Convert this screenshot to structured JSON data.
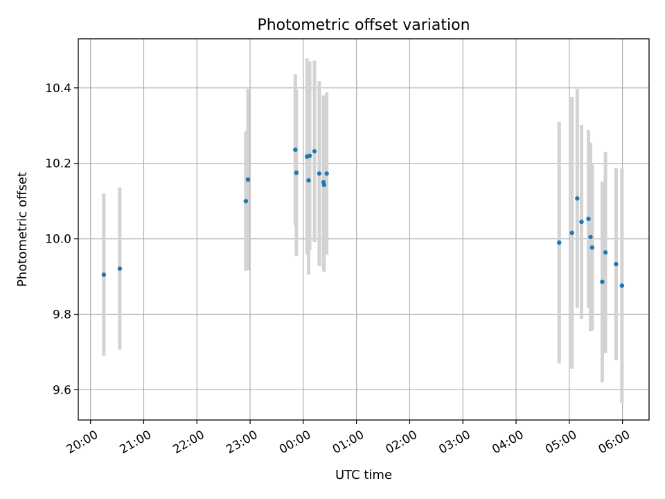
{
  "chart_data": {
    "type": "scatter",
    "title": "Photometric offset variation",
    "xlabel": "UTC time",
    "ylabel": "Photometric offset",
    "x_unit": "hours since 20:00 UTC",
    "xlim": [
      -0.23,
      10.5
    ],
    "ylim": [
      9.52,
      10.53
    ],
    "x_ticks": [
      {
        "label": "20:00",
        "value": 0
      },
      {
        "label": "21:00",
        "value": 1
      },
      {
        "label": "22:00",
        "value": 2
      },
      {
        "label": "23:00",
        "value": 3
      },
      {
        "label": "00:00",
        "value": 4
      },
      {
        "label": "01:00",
        "value": 5
      },
      {
        "label": "02:00",
        "value": 6
      },
      {
        "label": "03:00",
        "value": 7
      },
      {
        "label": "04:00",
        "value": 8
      },
      {
        "label": "05:00",
        "value": 9
      },
      {
        "label": "06:00",
        "value": 10
      }
    ],
    "y_ticks": [
      {
        "label": "9.6",
        "value": 9.6
      },
      {
        "label": "9.8",
        "value": 9.8
      },
      {
        "label": "10.0",
        "value": 10.0
      },
      {
        "label": "10.2",
        "value": 10.2
      },
      {
        "label": "10.4",
        "value": 10.4
      }
    ],
    "grid": true,
    "colors": {
      "point": "#1f77b4",
      "errorbar": "#d3d3d3",
      "grid": "#b0b0b0"
    },
    "points": [
      {
        "x": 0.25,
        "y": 9.905,
        "yerr": 0.215
      },
      {
        "x": 0.55,
        "y": 9.921,
        "yerr": 0.215
      },
      {
        "x": 2.92,
        "y": 10.1,
        "yerr": 0.185
      },
      {
        "x": 2.96,
        "y": 10.157,
        "yerr": 0.24
      },
      {
        "x": 3.85,
        "y": 10.236,
        "yerr": 0.2
      },
      {
        "x": 3.87,
        "y": 10.175,
        "yerr": 0.22
      },
      {
        "x": 4.07,
        "y": 10.218,
        "yerr": 0.26
      },
      {
        "x": 4.1,
        "y": 10.155,
        "yerr": 0.25
      },
      {
        "x": 4.12,
        "y": 10.22,
        "yerr": 0.25
      },
      {
        "x": 4.21,
        "y": 10.232,
        "yerr": 0.24
      },
      {
        "x": 4.3,
        "y": 10.173,
        "yerr": 0.245
      },
      {
        "x": 4.38,
        "y": 10.15,
        "yerr": 0.23
      },
      {
        "x": 4.39,
        "y": 10.143,
        "yerr": 0.23
      },
      {
        "x": 4.44,
        "y": 10.173,
        "yerr": 0.215
      },
      {
        "x": 8.81,
        "y": 9.99,
        "yerr": 0.32
      },
      {
        "x": 9.05,
        "y": 10.016,
        "yerr": 0.36
      },
      {
        "x": 9.15,
        "y": 10.107,
        "yerr": 0.29
      },
      {
        "x": 9.23,
        "y": 10.045,
        "yerr": 0.257
      },
      {
        "x": 9.36,
        "y": 10.053,
        "yerr": 0.235
      },
      {
        "x": 9.4,
        "y": 10.005,
        "yerr": 0.25
      },
      {
        "x": 9.43,
        "y": 9.977,
        "yerr": 0.22
      },
      {
        "x": 9.62,
        "y": 9.886,
        "yerr": 0.266
      },
      {
        "x": 9.68,
        "y": 9.964,
        "yerr": 0.266
      },
      {
        "x": 9.88,
        "y": 9.933,
        "yerr": 0.255
      },
      {
        "x": 9.99,
        "y": 9.876,
        "yerr": 0.31
      }
    ]
  }
}
